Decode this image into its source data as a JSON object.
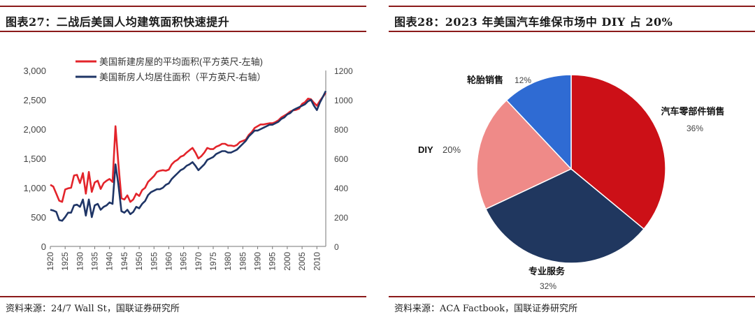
{
  "panels": {
    "left": {
      "title": "图表27：二战后美国人均建筑面积快速提升",
      "source": "资料来源：24/7 Wall St，国联证券研究所"
    },
    "right": {
      "title": "图表28：2023 年美国汽车维保市场中 DIY 占 20%",
      "source": "资料来源：ACA Factbook，国联证券研究所"
    }
  },
  "colors": {
    "accent_rule": "#8b1a1a",
    "red": "#e3242b",
    "navy": "#1f3566"
  },
  "chart_data": [
    {
      "type": "line",
      "title": "二战后美国人均建筑面积快速提升",
      "xlim": [
        1920,
        2013
      ],
      "ylim": [
        0,
        3000
      ],
      "y2lim": [
        0,
        1200
      ],
      "yticks": [
        "0",
        "500",
        "1,000",
        "1,500",
        "2,000",
        "2,500",
        "3,000"
      ],
      "y2ticks": [
        "0",
        "200",
        "400",
        "600",
        "800",
        "1000",
        "1200"
      ],
      "xticks": [
        "1920",
        "1925",
        "1930",
        "1935",
        "1940",
        "1945",
        "1950",
        "1955",
        "1960",
        "1965",
        "1970",
        "1975",
        "1980",
        "1985",
        "1990",
        "1995",
        "2000",
        "2005",
        "2010"
      ],
      "legend_position": "top-left",
      "series": [
        {
          "name": "美国新建房屋的平均面积(平方英尺-左轴)",
          "axis": "left",
          "color": "#e3242b",
          "x": [
            1920,
            1921,
            1922,
            1923,
            1924,
            1925,
            1926,
            1927,
            1928,
            1929,
            1930,
            1931,
            1932,
            1933,
            1934,
            1935,
            1936,
            1937,
            1938,
            1939,
            1940,
            1941,
            1942,
            1943,
            1944,
            1945,
            1946,
            1947,
            1948,
            1949,
            1950,
            1951,
            1952,
            1953,
            1954,
            1955,
            1956,
            1957,
            1958,
            1959,
            1960,
            1961,
            1962,
            1963,
            1964,
            1965,
            1966,
            1967,
            1968,
            1969,
            1970,
            1971,
            1972,
            1973,
            1974,
            1975,
            1976,
            1977,
            1978,
            1979,
            1980,
            1981,
            1982,
            1983,
            1984,
            1985,
            1986,
            1987,
            1988,
            1989,
            1990,
            1991,
            1992,
            1993,
            1994,
            1995,
            1996,
            1997,
            1998,
            1999,
            2000,
            2001,
            2002,
            2003,
            2004,
            2005,
            2006,
            2007,
            2008,
            2009,
            2010,
            2011,
            2012,
            2013
          ],
          "values": [
            1050,
            1020,
            900,
            780,
            760,
            970,
            990,
            1000,
            1210,
            1220,
            1080,
            1250,
            900,
            1270,
            930,
            1090,
            1120,
            980,
            1080,
            1120,
            1150,
            1100,
            2050,
            1400,
            820,
            800,
            870,
            760,
            800,
            900,
            860,
            960,
            1000,
            1100,
            1150,
            1200,
            1270,
            1290,
            1300,
            1290,
            1310,
            1400,
            1450,
            1480,
            1530,
            1550,
            1600,
            1640,
            1680,
            1600,
            1500,
            1540,
            1600,
            1680,
            1660,
            1660,
            1700,
            1720,
            1750,
            1750,
            1720,
            1720,
            1710,
            1730,
            1780,
            1800,
            1820,
            1900,
            1950,
            2020,
            2050,
            2080,
            2080,
            2090,
            2100,
            2100,
            2120,
            2150,
            2200,
            2230,
            2260,
            2300,
            2320,
            2330,
            2350,
            2430,
            2460,
            2520,
            2510,
            2450,
            2400,
            2480,
            2550,
            2620
          ]
        },
        {
          "name": "美国新房人均居住面积（平方英尺-右轴）",
          "axis": "right",
          "color": "#1f3566",
          "x": [
            1920,
            1921,
            1922,
            1923,
            1924,
            1925,
            1926,
            1927,
            1928,
            1929,
            1930,
            1931,
            1932,
            1933,
            1934,
            1935,
            1936,
            1937,
            1938,
            1939,
            1940,
            1941,
            1942,
            1943,
            1944,
            1945,
            1946,
            1947,
            1948,
            1949,
            1950,
            1951,
            1952,
            1953,
            1954,
            1955,
            1956,
            1957,
            1958,
            1959,
            1960,
            1961,
            1962,
            1963,
            1964,
            1965,
            1966,
            1967,
            1968,
            1969,
            1970,
            1971,
            1972,
            1973,
            1974,
            1975,
            1976,
            1977,
            1978,
            1979,
            1980,
            1981,
            1982,
            1983,
            1984,
            1985,
            1986,
            1987,
            1988,
            1989,
            1990,
            1991,
            1992,
            1993,
            1994,
            1995,
            1996,
            1997,
            1998,
            1999,
            2000,
            2001,
            2002,
            2003,
            2004,
            2005,
            2006,
            2007,
            2008,
            2009,
            2010,
            2011,
            2012,
            2013
          ],
          "values": [
            250,
            245,
            235,
            180,
            175,
            200,
            230,
            230,
            280,
            285,
            270,
            320,
            210,
            320,
            200,
            280,
            290,
            250,
            270,
            280,
            300,
            290,
            560,
            420,
            240,
            230,
            250,
            220,
            235,
            270,
            260,
            290,
            310,
            350,
            370,
            380,
            390,
            390,
            400,
            420,
            430,
            460,
            480,
            500,
            520,
            530,
            550,
            560,
            575,
            550,
            520,
            540,
            560,
            590,
            600,
            610,
            630,
            640,
            650,
            650,
            640,
            640,
            650,
            660,
            680,
            700,
            720,
            750,
            770,
            790,
            790,
            800,
            810,
            820,
            830,
            830,
            840,
            850,
            870,
            880,
            900,
            910,
            930,
            940,
            950,
            960,
            970,
            990,
            1000,
            960,
            930,
            980,
            1020,
            1060
          ]
        }
      ]
    },
    {
      "type": "pie",
      "title": "2023 年美国汽车维保市场中 DIY 占 20%",
      "slices": [
        {
          "name": "汽车零部件销售",
          "value": 36,
          "label": "36%",
          "color": "#cc1017"
        },
        {
          "name": "专业服务",
          "value": 32,
          "label": "32%",
          "color": "#20375f"
        },
        {
          "name": "DIY",
          "value": 20,
          "label": "20%",
          "color": "#ef8a88"
        },
        {
          "name": "轮胎销售",
          "value": 12,
          "label": "12%",
          "color": "#2f6bd3"
        }
      ]
    }
  ]
}
